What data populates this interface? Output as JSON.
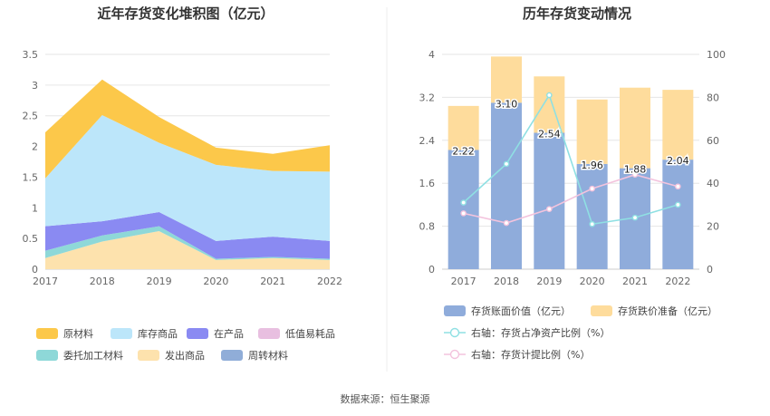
{
  "source_text": "数据来源：恒生聚源",
  "colors": {
    "raw_materials": "#fcc84a",
    "finished_goods": "#bce6fa",
    "wip": "#8a8af2",
    "low_value": "#e8bfe0",
    "consigned": "#8ed8d8",
    "shipped": "#fde2ad",
    "turnover": "#90add8",
    "book_value": "#8facdb",
    "impairment": "#fedc9c",
    "ratio_net_assets": "#8fe0e3",
    "ratio_provision": "#f3c3dd"
  },
  "chart_data": [
    {
      "type": "area",
      "stacked": true,
      "title": "近年存货变化堆积图（亿元）",
      "x": [
        "2017",
        "2018",
        "2019",
        "2020",
        "2021",
        "2022"
      ],
      "ylim": [
        0,
        3.5
      ],
      "yticks": [
        "0",
        "0.5",
        "1",
        "1.5",
        "2",
        "2.5",
        "3",
        "3.5"
      ],
      "grid": true,
      "series": [
        {
          "name": "原材料",
          "color_key": "raw_materials",
          "values": [
            0.75,
            0.58,
            0.42,
            0.28,
            0.28,
            0.43
          ]
        },
        {
          "name": "库存商品",
          "color_key": "finished_goods",
          "values": [
            0.78,
            1.73,
            1.13,
            1.24,
            1.07,
            1.13
          ]
        },
        {
          "name": "在产品",
          "color_key": "wip",
          "values": [
            0.4,
            0.23,
            0.23,
            0.29,
            0.33,
            0.29
          ]
        },
        {
          "name": "低值易耗品",
          "color_key": "low_value",
          "values": [
            0.0,
            0.0,
            0.0,
            0.0,
            0.0,
            0.0
          ]
        },
        {
          "name": "委托加工材料",
          "color_key": "consigned",
          "values": [
            0.12,
            0.1,
            0.08,
            0.02,
            0.02,
            0.02
          ]
        },
        {
          "name": "发出商品",
          "color_key": "shipped",
          "values": [
            0.18,
            0.45,
            0.62,
            0.15,
            0.18,
            0.15
          ]
        },
        {
          "name": "周转材料",
          "color_key": "turnover",
          "values": [
            0.0,
            0.0,
            0.0,
            0.0,
            0.0,
            0.0
          ]
        }
      ],
      "legend": [
        {
          "name": "原材料",
          "color_key": "raw_materials"
        },
        {
          "name": "库存商品",
          "color_key": "finished_goods"
        },
        {
          "name": "在产品",
          "color_key": "wip"
        },
        {
          "name": "低值易耗品",
          "color_key": "low_value"
        },
        {
          "name": "委托加工材料",
          "color_key": "consigned"
        },
        {
          "name": "发出商品",
          "color_key": "shipped"
        },
        {
          "name": "周转材料",
          "color_key": "turnover"
        }
      ]
    },
    {
      "type": "bar",
      "stacked": true,
      "title": "历年存货变动情况",
      "categories": [
        "2017",
        "2018",
        "2019",
        "2020",
        "2021",
        "2022"
      ],
      "ylim": [
        0,
        4
      ],
      "yticks": [
        "0",
        "0.8",
        "1.6",
        "2.4",
        "3.2",
        "4"
      ],
      "y2lim": [
        0,
        100
      ],
      "y2ticks": [
        "0",
        "20",
        "40",
        "60",
        "80",
        "100"
      ],
      "series": [
        {
          "name": "存货账面价值（亿元）",
          "color_key": "book_value",
          "values": [
            2.22,
            3.1,
            2.54,
            1.96,
            1.88,
            2.04
          ],
          "labels": [
            "2.22",
            "3.10",
            "2.54",
            "1.96",
            "1.88",
            "2.04"
          ]
        },
        {
          "name": "存货跌价准备（亿元）",
          "color_key": "impairment",
          "values": [
            0.82,
            0.86,
            1.05,
            1.2,
            1.5,
            1.3
          ]
        }
      ],
      "lines": [
        {
          "name": "右轴：存货占净资产比例（%）",
          "color_key": "ratio_net_assets",
          "axis": "right",
          "values": [
            31,
            49,
            81,
            21,
            24,
            30
          ]
        },
        {
          "name": "右轴：存货计提比例（%）",
          "color_key": "ratio_provision",
          "axis": "right",
          "values": [
            26,
            21.5,
            28,
            37.5,
            44,
            38.5
          ]
        }
      ]
    }
  ]
}
